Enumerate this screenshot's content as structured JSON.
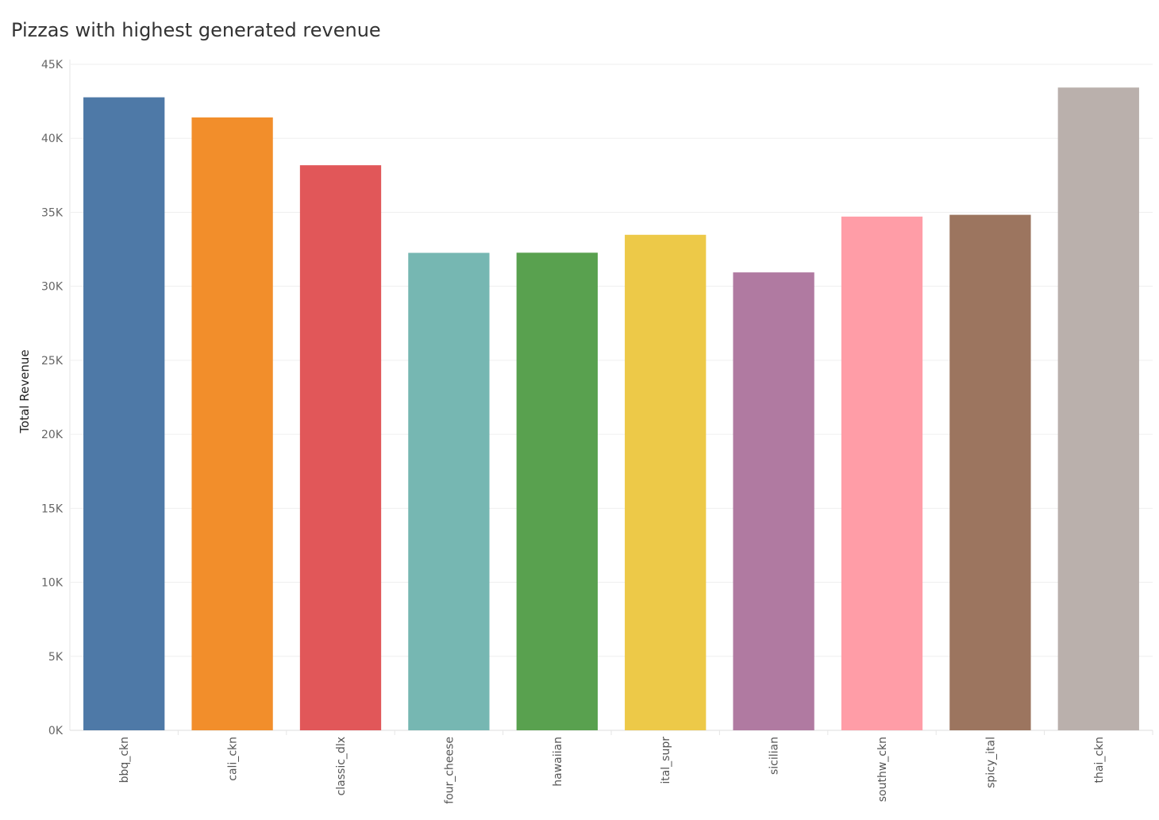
{
  "chart_data": {
    "type": "bar",
    "title": "Pizzas with highest generated revenue",
    "ylabel": "Total Revenue",
    "xlabel": "",
    "ylim": [
      0,
      45000
    ],
    "yticks": [
      0,
      5000,
      10000,
      15000,
      20000,
      25000,
      30000,
      35000,
      40000,
      45000
    ],
    "ytick_labels": [
      "0K",
      "5K",
      "10K",
      "15K",
      "20K",
      "25K",
      "30K",
      "35K",
      "40K",
      "45K"
    ],
    "grid": true,
    "categories": [
      "bbq_ckn",
      "cali_ckn",
      "classic_dlx",
      "four_cheese",
      "hawaiian",
      "ital_supr",
      "sicilian",
      "southw_ckn",
      "spicy_ital",
      "thai_ckn"
    ],
    "values": [
      42770,
      41410,
      38180,
      32260,
      32270,
      33480,
      30940,
      34710,
      34830,
      43430
    ],
    "colors": [
      "#4e79a7",
      "#f28e2b",
      "#e15759",
      "#76b7b2",
      "#59a14f",
      "#edc948",
      "#b07aa1",
      "#ff9da7",
      "#9c755f",
      "#bab0ac"
    ]
  }
}
